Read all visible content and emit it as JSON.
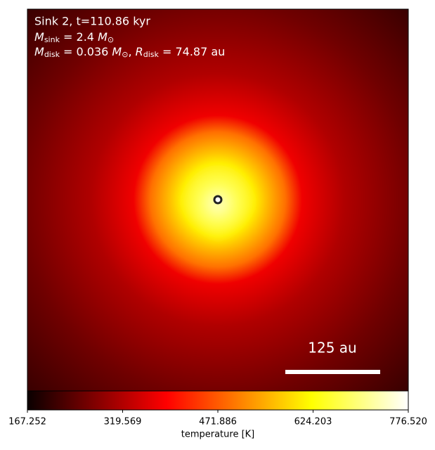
{
  "chart_data": {
    "type": "image",
    "annotation": {
      "line1": "Sink 2, t=110.86 kyr",
      "line2": {
        "symbol": "M",
        "subscript": "sink",
        "text": " = 2.4 ",
        "unit": "M",
        "unit_subscript": "⊙"
      },
      "line3": {
        "symbol": "M",
        "subscript": "disk",
        "text": " = 0.036 ",
        "unit": "M",
        "unit_subscript": "⊙",
        "sep": ", ",
        "symbol2": "R",
        "subscript2": "disk",
        "text2": " = 74.87 au"
      }
    },
    "scale_bar": {
      "label": "125 au"
    },
    "colormap": "hot",
    "colorbar": {
      "label": "temperature [K]",
      "clim": [
        167.252,
        776.52
      ],
      "ticks": [
        167.252,
        319.569,
        471.886,
        624.203,
        {
          "value": 776.52,
          "label": "776.520"
        }
      ]
    }
  }
}
